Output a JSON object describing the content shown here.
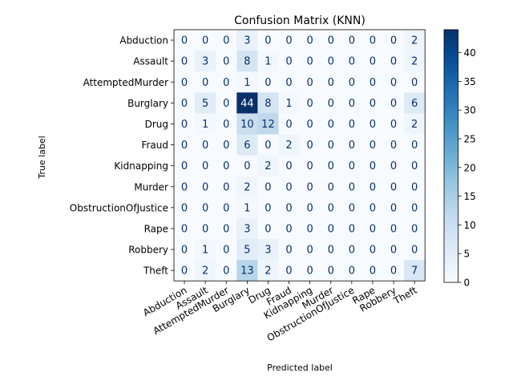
{
  "chart_data": {
    "type": "heatmap",
    "title": "Confusion Matrix (KNN)",
    "xlabel": "Predicted label",
    "ylabel": "True label",
    "labels": [
      "Abduction",
      "Assault",
      "AttemptedMurder",
      "Burglary",
      "Drug",
      "Fraud",
      "Kidnapping",
      "Murder",
      "ObstructionOfJustice",
      "Rape",
      "Robbery",
      "Theft"
    ],
    "matrix": [
      [
        0,
        0,
        0,
        3,
        0,
        0,
        0,
        0,
        0,
        0,
        0,
        2
      ],
      [
        0,
        3,
        0,
        8,
        1,
        0,
        0,
        0,
        0,
        0,
        0,
        2
      ],
      [
        0,
        0,
        0,
        1,
        0,
        0,
        0,
        0,
        0,
        0,
        0,
        0
      ],
      [
        0,
        5,
        0,
        44,
        8,
        1,
        0,
        0,
        0,
        0,
        0,
        6
      ],
      [
        0,
        1,
        0,
        10,
        12,
        0,
        0,
        0,
        0,
        0,
        0,
        2
      ],
      [
        0,
        0,
        0,
        6,
        0,
        2,
        0,
        0,
        0,
        0,
        0,
        0
      ],
      [
        0,
        0,
        0,
        0,
        2,
        0,
        0,
        0,
        0,
        0,
        0,
        0
      ],
      [
        0,
        0,
        0,
        2,
        0,
        0,
        0,
        0,
        0,
        0,
        0,
        0
      ],
      [
        0,
        0,
        0,
        1,
        0,
        0,
        0,
        0,
        0,
        0,
        0,
        0
      ],
      [
        0,
        0,
        0,
        3,
        0,
        0,
        0,
        0,
        0,
        0,
        0,
        0
      ],
      [
        0,
        1,
        0,
        5,
        3,
        0,
        0,
        0,
        0,
        0,
        0,
        0
      ],
      [
        0,
        2,
        0,
        13,
        2,
        0,
        0,
        0,
        0,
        0,
        0,
        7
      ]
    ],
    "colorbar": {
      "colormap": "Blues",
      "range": [
        0,
        44
      ],
      "ticks": [
        0,
        5,
        10,
        15,
        20,
        25,
        30,
        35,
        40
      ]
    },
    "colors": {
      "text_dark": "#08306b",
      "text_light": "#ffffff"
    }
  }
}
